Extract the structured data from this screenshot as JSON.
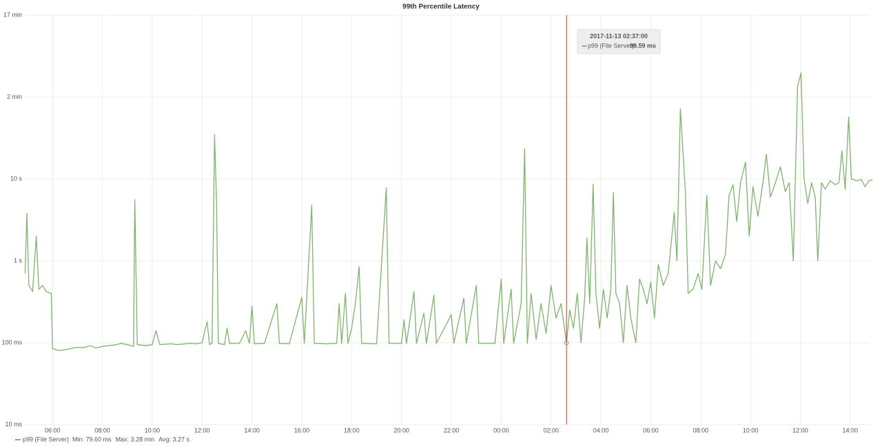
{
  "chart_data": {
    "type": "line",
    "title": "99th Percentile Latency",
    "log_scale": true,
    "grid": true,
    "x": [
      4.9,
      4.97,
      5.05,
      5.2,
      5.35,
      5.45,
      5.6,
      5.75,
      5.95,
      6.0,
      6.25,
      6.5,
      6.75,
      7.0,
      7.25,
      7.5,
      7.75,
      8.0,
      8.25,
      8.5,
      8.75,
      9.0,
      9.25,
      9.3,
      9.4,
      9.75,
      10.0,
      10.15,
      10.3,
      10.75,
      11.0,
      11.5,
      11.75,
      12.0,
      12.2,
      12.3,
      12.4,
      12.5,
      12.58,
      12.65,
      12.9,
      13.0,
      13.1,
      13.5,
      13.75,
      13.9,
      14.0,
      14.1,
      14.5,
      15.0,
      15.1,
      15.5,
      16.0,
      16.1,
      16.4,
      16.5,
      17.0,
      17.4,
      17.5,
      17.6,
      17.75,
      17.85,
      18.0,
      18.15,
      18.3,
      18.4,
      19.0,
      19.39,
      19.5,
      20.0,
      20.1,
      20.2,
      20.5,
      20.6,
      20.9,
      21.0,
      21.3,
      21.4,
      22.0,
      22.1,
      22.5,
      22.6,
      23.0,
      23.1,
      23.75,
      24.0,
      24.1,
      24.4,
      24.5,
      24.8,
      24.94,
      25.05,
      25.2,
      25.4,
      25.6,
      25.8,
      26.0,
      26.2,
      26.4,
      26.62,
      26.75,
      26.9,
      27.05,
      27.2,
      27.35,
      27.44,
      27.55,
      27.69,
      27.8,
      27.95,
      28.1,
      28.25,
      28.4,
      28.5,
      28.6,
      28.75,
      28.9,
      29.05,
      29.2,
      29.4,
      29.55,
      29.7,
      29.85,
      30.0,
      30.15,
      30.3,
      30.5,
      30.7,
      30.94,
      31.05,
      31.19,
      31.39,
      31.5,
      31.7,
      31.9,
      32.05,
      32.25,
      32.4,
      32.6,
      32.8,
      33.0,
      33.14,
      33.3,
      33.45,
      33.6,
      33.8,
      33.95,
      34.1,
      34.3,
      34.5,
      34.64,
      34.8,
      35.0,
      35.2,
      35.4,
      35.55,
      35.72,
      35.89,
      36.03,
      36.15,
      36.3,
      36.45,
      36.6,
      36.7,
      36.85,
      37.0,
      37.2,
      37.4,
      37.55,
      37.67,
      37.8,
      37.94,
      38.05,
      38.25,
      38.45,
      38.6,
      38.75,
      38.9
    ],
    "series": [
      {
        "name": "p99 (File Server)",
        "color": "#7eb26d",
        "values": [
          700,
          3800,
          500,
          420,
          2000,
          450,
          500,
          420,
          400,
          85,
          80,
          82,
          85,
          88,
          87,
          92,
          86,
          90,
          92,
          94,
          98,
          95,
          90,
          5600,
          95,
          92,
          95,
          140,
          95,
          97,
          95,
          98,
          97,
          100,
          180,
          95,
          98,
          34600,
          5000,
          98,
          95,
          150,
          98,
          98,
          140,
          98,
          280,
          97,
          98,
          300,
          98,
          97,
          360,
          98,
          4800,
          98,
          97,
          98,
          300,
          98,
          400,
          98,
          150,
          300,
          850,
          98,
          97,
          7800,
          98,
          98,
          190,
          98,
          420,
          98,
          230,
          98,
          380,
          98,
          220,
          98,
          350,
          98,
          500,
          98,
          98,
          600,
          98,
          450,
          98,
          300,
          23400,
          98,
          400,
          110,
          300,
          130,
          500,
          200,
          300,
          99.59,
          250,
          150,
          400,
          100,
          350,
          1900,
          300,
          8600,
          400,
          150,
          450,
          200,
          450,
          6800,
          400,
          300,
          100,
          500,
          200,
          100,
          600,
          450,
          300,
          550,
          200,
          900,
          500,
          700,
          3900,
          1000,
          72000,
          6800,
          400,
          450,
          700,
          450,
          6300,
          500,
          1000,
          800,
          1200,
          6300,
          8500,
          3000,
          9000,
          16000,
          2000,
          8000,
          3500,
          9000,
          20000,
          6000,
          9000,
          14000,
          7000,
          9000,
          1000,
          135000,
          196800,
          10000,
          5000,
          9000,
          6000,
          1000,
          9000,
          7500,
          9500,
          8500,
          9000,
          22000,
          7500,
          57000,
          10000,
          9500,
          9800,
          8000,
          9500,
          9800
        ]
      }
    ],
    "xlim": [
      4.86,
      38.78
    ],
    "xticks": [
      {
        "value": 6,
        "label": "06:00"
      },
      {
        "value": 8,
        "label": "08:00"
      },
      {
        "value": 10,
        "label": "10:00"
      },
      {
        "value": 12,
        "label": "12:00"
      },
      {
        "value": 14,
        "label": "14:00"
      },
      {
        "value": 16,
        "label": "16:00"
      },
      {
        "value": 18,
        "label": "18:00"
      },
      {
        "value": 20,
        "label": "20:00"
      },
      {
        "value": 22,
        "label": "22:00"
      },
      {
        "value": 24,
        "label": "00:00"
      },
      {
        "value": 26,
        "label": "02:00"
      },
      {
        "value": 28,
        "label": "04:00"
      },
      {
        "value": 30,
        "label": "06:00"
      },
      {
        "value": 32,
        "label": "08:00"
      },
      {
        "value": 34,
        "label": "10:00"
      },
      {
        "value": 36,
        "label": "12:00"
      },
      {
        "value": 38,
        "label": "14:00"
      }
    ],
    "ylim": [
      10,
      1000000
    ],
    "yticks": [
      {
        "value": 10,
        "label": "10 ms"
      },
      {
        "value": 100,
        "label": "100 ms"
      },
      {
        "value": 1000,
        "label": "1 s"
      },
      {
        "value": 10000,
        "label": "10 s"
      },
      {
        "value": 100000,
        "label": "2 min"
      },
      {
        "value": 1000000,
        "label": "17 min"
      }
    ],
    "tooltip": {
      "x": 26.62,
      "time": "2017-11-13 02:37:00",
      "series": "p99 (File Server):",
      "value": 99.59,
      "value_label": "99.59 ms"
    },
    "legend_stats": [
      "Min: 79.60 ms",
      "Max: 3.28 min",
      "Avg: 3.27 s"
    ]
  }
}
